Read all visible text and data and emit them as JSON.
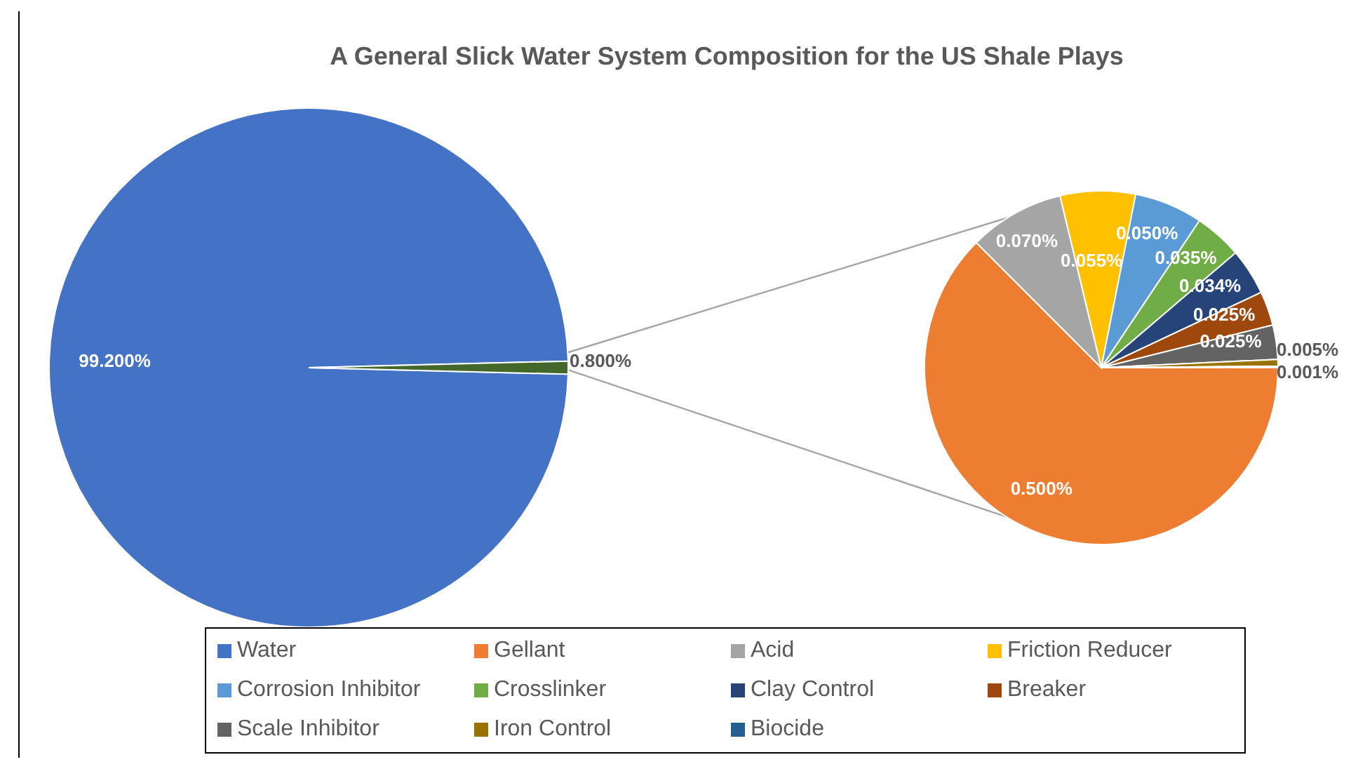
{
  "chart_data": [
    {
      "type": "pie",
      "title": "A General Slick Water System Composition for the US Shale Plays",
      "categories": [
        "Water",
        null
      ],
      "values": [
        99.2,
        0.8
      ],
      "colors": [
        "#4472c4",
        "#43682b"
      ],
      "value_labels": [
        "99.200%",
        "0.800%"
      ],
      "legend": "bottom"
    },
    {
      "type": "pie",
      "categories": [
        "Gellant",
        "Acid",
        "Friction Reducer",
        "Corrosion Inhibitor",
        "Crosslinker",
        "Clay Control",
        "Breaker",
        "Scale Inhibitor",
        "Iron Control",
        "Biocide"
      ],
      "values": [
        0.5,
        0.07,
        0.055,
        0.05,
        0.035,
        0.034,
        0.025,
        0.025,
        0.005,
        0.001
      ],
      "colors": [
        "#ed7d31",
        "#a5a5a5",
        "#ffc000",
        "#5b9bd5",
        "#70ad47",
        "#264478",
        "#9e480e",
        "#636363",
        "#997300",
        "#255e91"
      ],
      "value_labels": [
        "0.500%",
        "0.070%",
        "0.055%",
        "0.050%",
        "0.035%",
        "0.034%",
        "0.025%",
        "0.025%",
        "0.005%",
        "0.001%"
      ],
      "legend": "bottom"
    }
  ]
}
